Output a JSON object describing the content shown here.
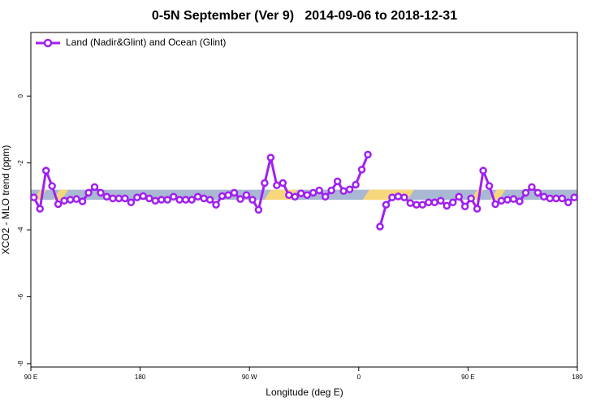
{
  "chart_data": {
    "type": "line",
    "title": "0-5N September (Ver 9)   2014-09-06 to 2018-12-31",
    "x_label": "Longitude (deg E)",
    "y_label": "XCO2 - MLO trend (ppm)",
    "xlim": [
      90,
      540
    ],
    "ylim": [
      -8.1,
      1.9
    ],
    "xticks": [
      {
        "value": 90,
        "label": "90 E"
      },
      180,
      {
        "value": 270,
        "label": "90 W"
      },
      {
        "value": 360,
        "label": "0"
      },
      {
        "value": 450,
        "label": "90 E"
      },
      {
        "value": 540,
        "label": "180"
      }
    ],
    "yticks": [
      0,
      -2,
      -4,
      -6,
      -8
    ],
    "legend_position": "top-left",
    "band": {
      "ylim": [
        -3.1,
        -2.8
      ],
      "color": "#a9b9d3",
      "regions": [
        {
          "color": "#f7d77c",
          "x": [
            95,
            100
          ]
        },
        {
          "color": "#f7d77c",
          "x": [
            111,
            118
          ]
        },
        {
          "color": "#f7d77c",
          "x": [
            285,
            307
          ]
        },
        {
          "color": "#f7d77c",
          "x": [
            366,
            403
          ]
        },
        {
          "color": "#f7d77c",
          "x": [
            455,
            460
          ]
        },
        {
          "color": "#f7d77c",
          "x": [
            471,
            478
          ]
        }
      ]
    },
    "x": [
      92.5,
      97.5,
      102.5,
      107.5,
      112.5,
      117.5,
      122.5,
      127.5,
      132.5,
      137.5,
      142.5,
      147.5,
      152.5,
      157.5,
      162.5,
      167.5,
      172.5,
      177.5,
      182.5,
      187.5,
      192.5,
      197.5,
      202.5,
      207.5,
      212.5,
      217.5,
      222.5,
      227.5,
      232.5,
      237.5,
      242.5,
      247.5,
      252.5,
      257.5,
      262.5,
      267.5,
      272.5,
      277.5,
      282.5,
      287.5,
      292.5,
      297.5,
      302.5,
      307.5,
      312.5,
      317.5,
      322.5,
      327.5,
      332.5,
      337.5,
      342.5,
      347.5,
      352.5,
      357.5,
      362.5,
      367.5,
      372.5,
      377.5,
      382.5,
      387.5,
      392.5,
      397.5,
      402.5,
      407.5,
      412.5,
      417.5,
      422.5,
      427.5,
      432.5,
      437.5,
      442.5,
      447.5,
      452.5,
      457.5,
      462.5,
      467.5,
      472.5,
      477.5,
      482.5,
      487.5,
      492.5,
      497.5,
      502.5,
      507.5,
      512.5,
      517.5,
      522.5,
      527.5,
      532.5,
      537.5
    ],
    "series": [
      {
        "name": "Land (Nadir&Glint) and Ocean (Glint)",
        "color": "#a020f0",
        "values": [
          -3.03,
          -3.37,
          -2.23,
          -2.69,
          -3.23,
          -3.13,
          -3.1,
          -3.08,
          -3.15,
          -2.89,
          -2.72,
          -2.89,
          -3.01,
          -3.06,
          -3.06,
          -3.06,
          -3.18,
          -3.03,
          -2.99,
          -3.06,
          -3.13,
          -3.1,
          -3.1,
          -3.01,
          -3.1,
          -3.1,
          -3.1,
          -3.01,
          -3.06,
          -3.1,
          -3.25,
          -2.99,
          -2.96,
          -2.89,
          -3.08,
          -2.96,
          -3.1,
          -3.4,
          -2.6,
          -1.84,
          -2.67,
          -2.6,
          -2.96,
          -3.01,
          -2.91,
          -2.96,
          -2.89,
          -2.82,
          -3.01,
          -2.82,
          -2.55,
          -2.84,
          -2.79,
          -2.65,
          -2.2,
          -1.75,
          null,
          -3.9,
          -3.25,
          -3.03,
          -3.0,
          -3.03,
          -3.2,
          -3.25,
          -3.25,
          -3.18,
          -3.18,
          -3.13,
          -3.28,
          -3.18,
          -3.01,
          -3.3,
          -3.06,
          -3.37,
          -2.23,
          -2.69,
          -3.23,
          -3.13,
          -3.1,
          -3.08,
          -3.15,
          -2.89,
          -2.72,
          -2.89,
          -3.01,
          -3.06,
          -3.06,
          -3.06,
          -3.18,
          -3.03
        ]
      }
    ]
  }
}
